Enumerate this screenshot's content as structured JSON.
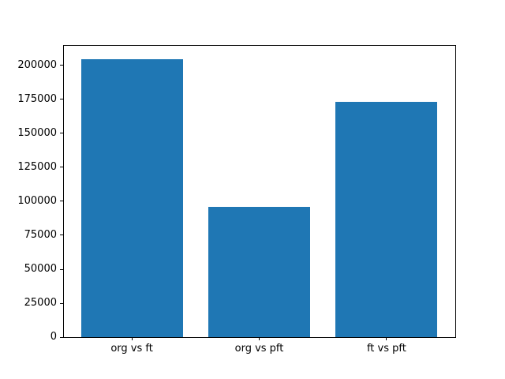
{
  "figure": {
    "background_color": "#ffffff",
    "frame_color": "#000000",
    "tick_color": "#000000",
    "label_color": "#000000"
  },
  "chart_data": {
    "type": "bar",
    "title": "",
    "xlabel": "",
    "ylabel": "",
    "categories": [
      "org vs ft",
      "org vs pft",
      "ft vs pft"
    ],
    "values": [
      204800,
      95900,
      173100
    ],
    "bar_color": "#1f77b4",
    "ylim": [
      0,
      215000
    ],
    "xlim": [
      -0.54,
      2.54
    ],
    "bar_width": 0.8,
    "yticks": [
      0,
      25000,
      50000,
      75000,
      100000,
      125000,
      150000,
      175000,
      200000
    ],
    "ytick_labels": [
      "0",
      "25000",
      "50000",
      "75000",
      "100000",
      "125000",
      "150000",
      "175000",
      "200000"
    ],
    "grid": false,
    "legend": null
  }
}
